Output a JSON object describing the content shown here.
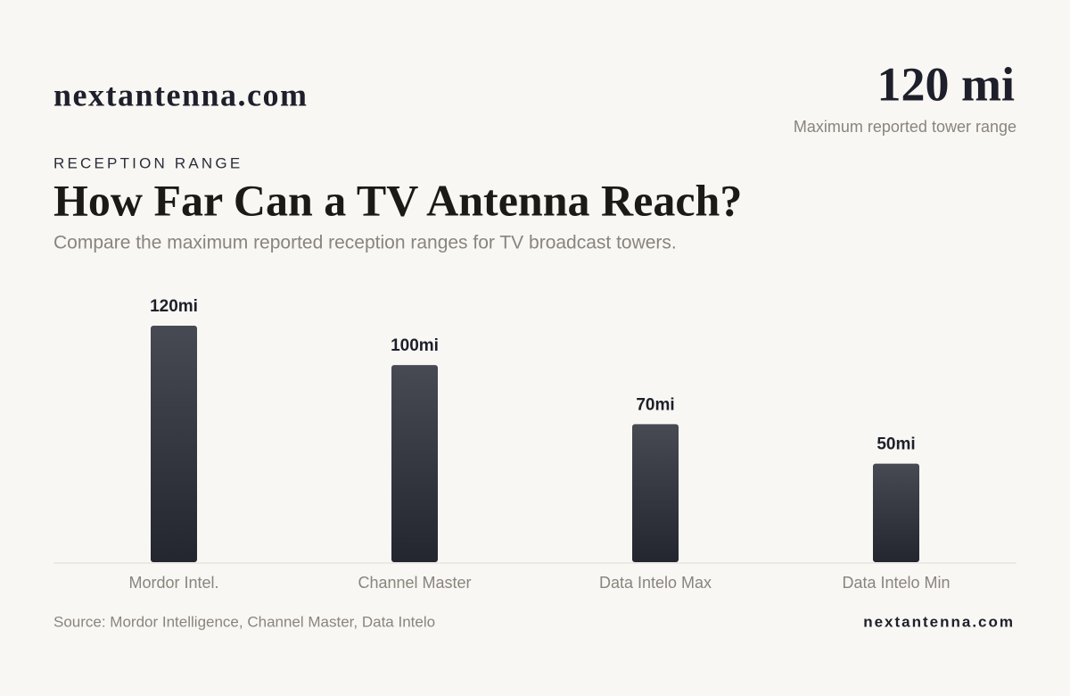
{
  "header": {
    "brand": "nextantenna.com",
    "highlight": "120 mi",
    "highlight_caption": "Maximum reported tower range"
  },
  "chart_data": {
    "type": "bar",
    "eyebrow": "RECEPTION RANGE",
    "title": "How Far Can a TV Antenna Reach?",
    "subtitle": "Compare the maximum reported reception ranges for TV broadcast towers.",
    "categories": [
      "Mordor Intel.",
      "Channel Master",
      "Data Intelo Max",
      "Data Intelo Min"
    ],
    "values": [
      120,
      100,
      70,
      50
    ],
    "value_labels": [
      "120mi",
      "100mi",
      "70mi",
      "50mi"
    ],
    "color": "#23262f",
    "ylim": [
      0,
      120
    ]
  },
  "footer": {
    "source": "Source: Mordor Intelligence, Channel Master, Data Intelo",
    "brand": "nextantenna.com"
  }
}
